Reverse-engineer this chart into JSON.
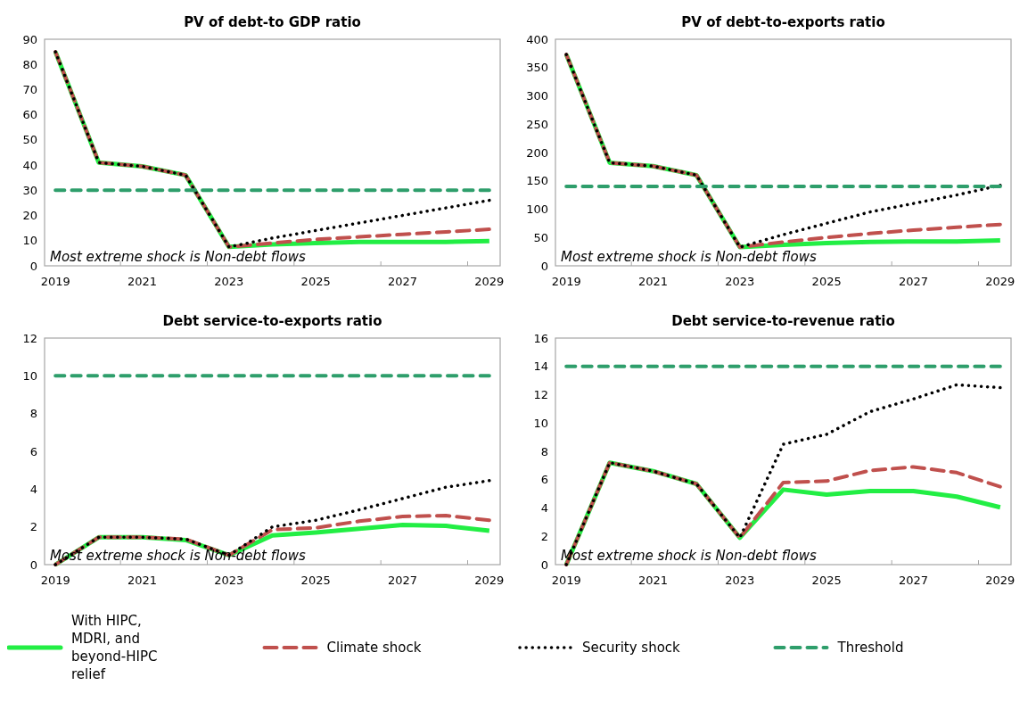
{
  "chart_data": [
    {
      "type": "line",
      "title": "PV of debt-to GDP ratio",
      "categories": [
        "2019",
        null,
        "2021",
        null,
        "2023",
        null,
        "2025",
        null,
        "2027",
        null,
        "2029"
      ],
      "ylim": [
        0,
        90
      ],
      "yticks": [
        0,
        10,
        20,
        30,
        40,
        50,
        60,
        70,
        80,
        90
      ],
      "grid": false,
      "legend": "bottom",
      "annotations": [
        "Most extreme shock is Non-debt flows"
      ],
      "series": [
        {
          "name": "With HIPC, MDRI, and beyond-HIPC relief",
          "color": "#22ee44",
          "line_style": "solid",
          "values": [
            85,
            41,
            39.5,
            36,
            7.5,
            8.5,
            9,
            9.5,
            9.5,
            9.5,
            9.8
          ]
        },
        {
          "name": "Climate shock",
          "color": "#c0504d",
          "line_style": "dashed",
          "values": [
            85,
            41,
            39.5,
            36,
            7.5,
            9,
            10.5,
            11.5,
            12.5,
            13.5,
            14.5
          ]
        },
        {
          "name": "Security shock",
          "color": "#000000",
          "line_style": "dotted",
          "values": [
            85,
            41,
            39.5,
            36,
            7.5,
            11,
            14,
            17,
            20,
            23,
            26
          ]
        },
        {
          "name": "Threshold",
          "color": "#2e9e6b",
          "line_style": "dashed",
          "values": [
            30,
            30,
            30,
            30,
            30,
            30,
            30,
            30,
            30,
            30,
            30
          ]
        }
      ]
    },
    {
      "type": "line",
      "title": "PV of debt-to-exports  ratio",
      "categories": [
        "2019",
        null,
        "2021",
        null,
        "2023",
        null,
        "2025",
        null,
        "2027",
        null,
        "2029"
      ],
      "ylim": [
        0,
        400
      ],
      "yticks": [
        0,
        50,
        100,
        150,
        200,
        250,
        300,
        350,
        400
      ],
      "grid": false,
      "annotations": [
        "Most extreme shock is Non-debt flows"
      ],
      "series": [
        {
          "color": "#22ee44",
          "line_style": "solid",
          "values": [
            373,
            182,
            176,
            160,
            33,
            37,
            40,
            42,
            43,
            43,
            45
          ]
        },
        {
          "color": "#c0504d",
          "line_style": "dashed",
          "values": [
            373,
            182,
            176,
            160,
            33,
            42,
            50,
            57,
            63,
            68,
            73
          ]
        },
        {
          "color": "#000000",
          "line_style": "dotted",
          "values": [
            373,
            182,
            176,
            160,
            33,
            55,
            75,
            95,
            110,
            125,
            142
          ]
        },
        {
          "color": "#2e9e6b",
          "line_style": "dashed",
          "values": [
            140,
            140,
            140,
            140,
            140,
            140,
            140,
            140,
            140,
            140,
            140
          ]
        }
      ]
    },
    {
      "type": "line",
      "title": "Debt service-to-exports  ratio",
      "categories": [
        "2019",
        null,
        "2021",
        null,
        "2023",
        null,
        "2025",
        null,
        "2027",
        null,
        "2029"
      ],
      "ylim": [
        0,
        12
      ],
      "yticks": [
        0,
        2,
        4,
        6,
        8,
        10,
        12
      ],
      "grid": false,
      "annotations": [
        "Most extreme shock is Non-debt flows"
      ],
      "series": [
        {
          "color": "#22ee44",
          "line_style": "solid",
          "values": [
            0,
            1.45,
            1.45,
            1.3,
            0.5,
            1.55,
            1.7,
            1.9,
            2.1,
            2.05,
            1.8
          ]
        },
        {
          "color": "#c0504d",
          "line_style": "dashed",
          "values": [
            0,
            1.45,
            1.45,
            1.35,
            0.5,
            1.85,
            1.95,
            2.3,
            2.55,
            2.6,
            2.35
          ]
        },
        {
          "color": "#000000",
          "line_style": "dotted",
          "values": [
            0,
            1.45,
            1.45,
            1.35,
            0.5,
            2.0,
            2.35,
            2.9,
            3.5,
            4.1,
            4.45
          ]
        },
        {
          "color": "#2e9e6b",
          "line_style": "dashed",
          "values": [
            10,
            10,
            10,
            10,
            10,
            10,
            10,
            10,
            10,
            10,
            10
          ]
        }
      ]
    },
    {
      "type": "line",
      "title": "Debt service-to-revenue  ratio",
      "categories": [
        "2019",
        null,
        "2021",
        null,
        "2023",
        null,
        "2025",
        null,
        "2027",
        null,
        "2029"
      ],
      "ylim": [
        0,
        16
      ],
      "yticks": [
        0,
        2,
        4,
        6,
        8,
        10,
        12,
        14,
        16
      ],
      "grid": false,
      "annotations": [
        "Most extreme shock is Non-debt flows"
      ],
      "series": [
        {
          "color": "#22ee44",
          "line_style": "solid",
          "values": [
            0,
            7.2,
            6.6,
            5.7,
            1.9,
            5.3,
            4.95,
            5.2,
            5.2,
            4.8,
            4.05
          ]
        },
        {
          "color": "#c0504d",
          "line_style": "dashed",
          "values": [
            0,
            7.2,
            6.6,
            5.7,
            1.9,
            5.8,
            5.9,
            6.65,
            6.9,
            6.5,
            5.5
          ]
        },
        {
          "color": "#000000",
          "line_style": "dotted",
          "values": [
            0,
            7.2,
            6.6,
            5.7,
            1.9,
            8.5,
            9.2,
            10.8,
            11.7,
            12.7,
            12.5
          ]
        },
        {
          "color": "#2e9e6b",
          "line_style": "dashed",
          "values": [
            14,
            14,
            14,
            14,
            14,
            14,
            14,
            14,
            14,
            14,
            14
          ]
        }
      ]
    }
  ]
}
